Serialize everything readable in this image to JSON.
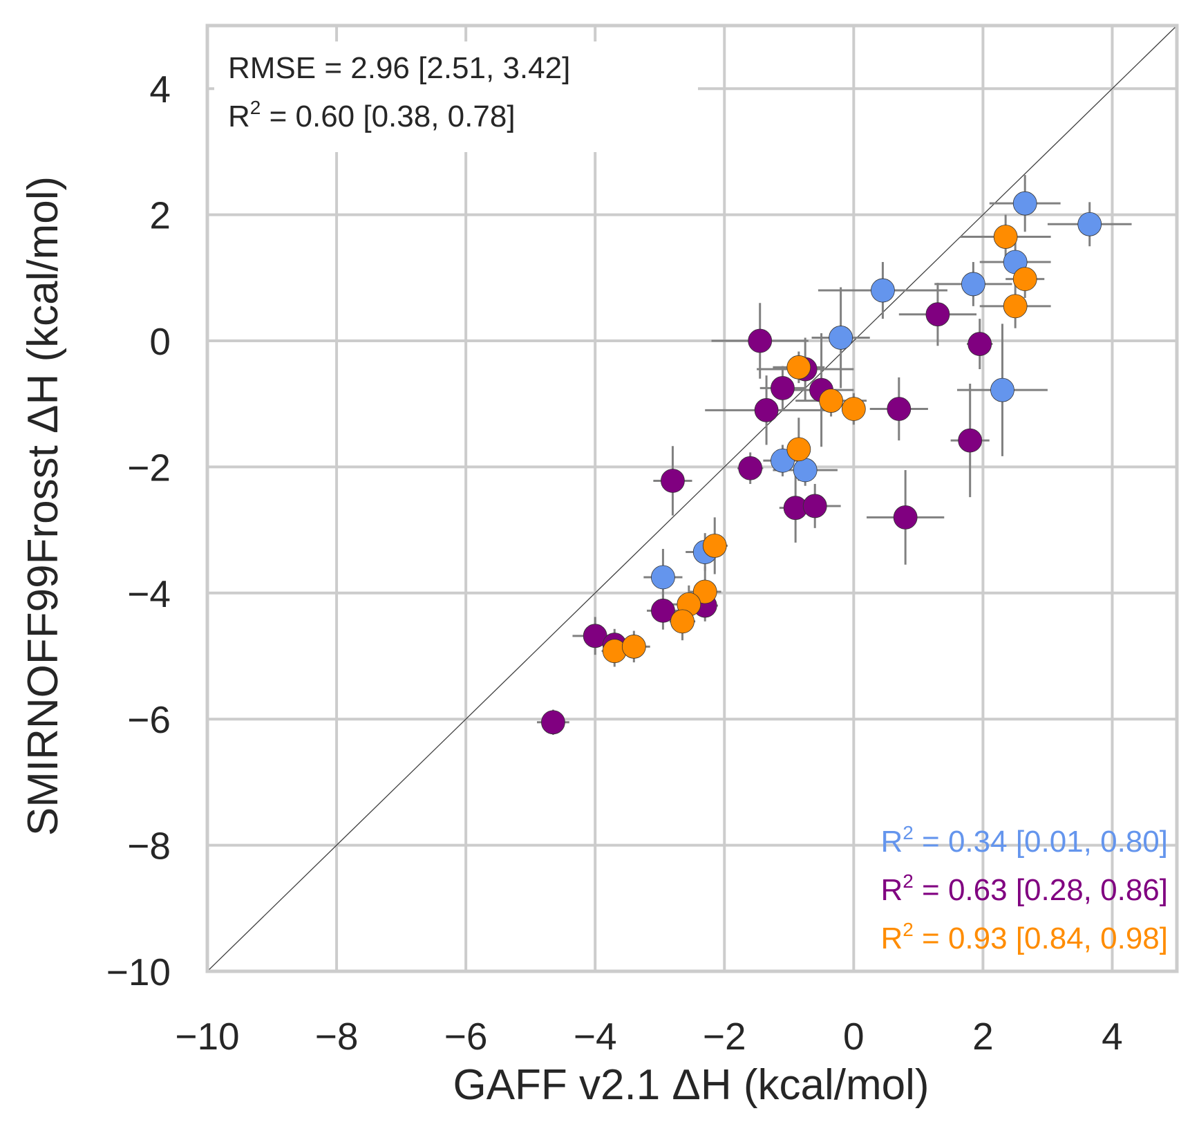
{
  "chart_data": {
    "type": "scatter",
    "xlabel": "GAFF v2.1 ΔH (kcal/mol)",
    "ylabel": "SMIRNOFF99Frosst ΔH (kcal/mol)",
    "xlim": [
      -10,
      5
    ],
    "ylim": [
      -10,
      5
    ],
    "xticks": [
      -10,
      -8,
      -6,
      -4,
      -2,
      0,
      2,
      4
    ],
    "yticks": [
      -10,
      -8,
      -6,
      -4,
      -2,
      0,
      2,
      4
    ],
    "grid": true,
    "identity_line": true,
    "annotations": {
      "overall": {
        "rmse_text": "RMSE = 2.96 [2.51, 3.42]",
        "r2_value_text": " = 0.60 [0.38, 0.78]"
      },
      "series_r2": [
        {
          "value_text": " = 0.34 [0.01, 0.80]",
          "color": "#6495ed"
        },
        {
          "value_text": " = 0.63 [0.28, 0.86]",
          "color": "#800080"
        },
        {
          "value_text": " = 0.93 [0.84, 0.98]",
          "color": "#ff8c00"
        }
      ],
      "r_symbol": "R",
      "superscript": "2"
    },
    "series": [
      {
        "color": "#6495ed",
        "points": [
          {
            "x": 2.65,
            "y": 2.18,
            "xerr": 0.55,
            "yerr": 0.45
          },
          {
            "x": 3.65,
            "y": 1.85,
            "xerr": 0.65,
            "yerr": 0.35
          },
          {
            "x": 2.5,
            "y": 1.25,
            "xerr": 0.55,
            "yerr": 0.35
          },
          {
            "x": 1.85,
            "y": 0.9,
            "xerr": 0.6,
            "yerr": 0.35
          },
          {
            "x": 0.45,
            "y": 0.8,
            "xerr": 1.0,
            "yerr": 0.45
          },
          {
            "x": -0.2,
            "y": 0.05,
            "xerr": 0.45,
            "yerr": 0.8
          },
          {
            "x": 2.3,
            "y": -0.78,
            "xerr": 0.7,
            "yerr": 1.05
          },
          {
            "x": -1.1,
            "y": -1.9,
            "xerr": 0.3,
            "yerr": 0.25
          },
          {
            "x": -0.75,
            "y": -2.05,
            "xerr": 0.5,
            "yerr": 0.25
          },
          {
            "x": -2.3,
            "y": -3.35,
            "xerr": 0.3,
            "yerr": 0.3
          },
          {
            "x": -2.95,
            "y": -3.75,
            "xerr": 0.3,
            "yerr": 0.45
          }
        ]
      },
      {
        "color": "#800080",
        "points": [
          {
            "x": -1.45,
            "y": 0.0,
            "xerr": 0.75,
            "yerr": 0.6
          },
          {
            "x": 1.3,
            "y": 0.42,
            "xerr": 0.6,
            "yerr": 0.5
          },
          {
            "x": 1.95,
            "y": -0.05,
            "xerr": 0.2,
            "yerr": 0.4
          },
          {
            "x": -0.75,
            "y": -0.45,
            "xerr": 0.75,
            "yerr": 0.5
          },
          {
            "x": -1.1,
            "y": -0.75,
            "xerr": 0.35,
            "yerr": 0.35
          },
          {
            "x": -0.5,
            "y": -0.78,
            "xerr": 0.5,
            "yerr": 0.9
          },
          {
            "x": -1.35,
            "y": -1.1,
            "xerr": 0.95,
            "yerr": 0.55
          },
          {
            "x": 0.7,
            "y": -1.08,
            "xerr": 0.45,
            "yerr": 0.5
          },
          {
            "x": 1.8,
            "y": -1.58,
            "xerr": 0.3,
            "yerr": 0.9
          },
          {
            "x": -1.6,
            "y": -2.02,
            "xerr": 0.2,
            "yerr": 0.25
          },
          {
            "x": -2.8,
            "y": -2.22,
            "xerr": 0.3,
            "yerr": 0.55
          },
          {
            "x": -0.9,
            "y": -2.65,
            "xerr": 0.25,
            "yerr": 0.55
          },
          {
            "x": -0.6,
            "y": -2.62,
            "xerr": 0.4,
            "yerr": 0.35
          },
          {
            "x": 0.8,
            "y": -2.8,
            "xerr": 0.6,
            "yerr": 0.75
          },
          {
            "x": -2.95,
            "y": -4.28,
            "xerr": 0.25,
            "yerr": 0.3
          },
          {
            "x": -2.3,
            "y": -4.2,
            "xerr": 0.2,
            "yerr": 0.25
          },
          {
            "x": -4.0,
            "y": -4.68,
            "xerr": 0.35,
            "yerr": 0.3
          },
          {
            "x": -3.7,
            "y": -4.82,
            "xerr": 0.2,
            "yerr": 0.25
          },
          {
            "x": -4.65,
            "y": -6.05,
            "xerr": 0.25,
            "yerr": 0.2
          }
        ]
      },
      {
        "color": "#ff8c00",
        "points": [
          {
            "x": 2.35,
            "y": 1.65,
            "xerr": 0.7,
            "yerr": 0.35
          },
          {
            "x": 2.65,
            "y": 0.98,
            "xerr": 0.3,
            "yerr": 0.3
          },
          {
            "x": 2.5,
            "y": 0.55,
            "xerr": 0.55,
            "yerr": 0.35
          },
          {
            "x": -0.85,
            "y": -0.42,
            "xerr": 0.4,
            "yerr": 0.25
          },
          {
            "x": -0.35,
            "y": -0.95,
            "xerr": 0.55,
            "yerr": 0.25
          },
          {
            "x": 0.0,
            "y": -1.08,
            "xerr": 0.15,
            "yerr": 0.25
          },
          {
            "x": -0.85,
            "y": -1.72,
            "xerr": 0.15,
            "yerr": 0.5
          },
          {
            "x": -2.15,
            "y": -3.25,
            "xerr": 0.2,
            "yerr": 0.45
          },
          {
            "x": -2.3,
            "y": -3.98,
            "xerr": 0.25,
            "yerr": 0.4
          },
          {
            "x": -2.55,
            "y": -4.18,
            "xerr": 0.25,
            "yerr": 0.3
          },
          {
            "x": -2.65,
            "y": -4.45,
            "xerr": 0.2,
            "yerr": 0.3
          },
          {
            "x": -3.7,
            "y": -4.92,
            "xerr": 0.2,
            "yerr": 0.25
          },
          {
            "x": -3.4,
            "y": -4.85,
            "xerr": 0.25,
            "yerr": 0.25
          }
        ]
      }
    ]
  }
}
